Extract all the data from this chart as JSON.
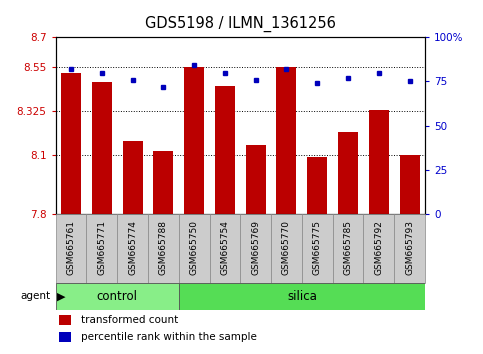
{
  "title": "GDS5198 / ILMN_1361256",
  "samples": [
    "GSM665761",
    "GSM665771",
    "GSM665774",
    "GSM665788",
    "GSM665750",
    "GSM665754",
    "GSM665769",
    "GSM665770",
    "GSM665775",
    "GSM665785",
    "GSM665792",
    "GSM665793"
  ],
  "transformed_count": [
    8.52,
    8.47,
    8.17,
    8.12,
    8.55,
    8.45,
    8.15,
    8.55,
    8.09,
    8.22,
    8.33,
    8.1
  ],
  "percentile_rank": [
    82,
    80,
    76,
    72,
    84,
    80,
    76,
    82,
    74,
    77,
    80,
    75
  ],
  "ylim_left": [
    7.8,
    8.7
  ],
  "ylim_right": [
    0,
    100
  ],
  "yticks_left": [
    7.8,
    8.1,
    8.325,
    8.55,
    8.7
  ],
  "ytick_labels_left": [
    "7.8",
    "8.1",
    "8.325",
    "8.55",
    "8.7"
  ],
  "yticks_right": [
    0,
    25,
    50,
    75,
    100
  ],
  "ytick_labels_right": [
    "0",
    "25",
    "50",
    "75",
    "100%"
  ],
  "grid_lines": [
    8.1,
    8.325,
    8.55
  ],
  "bar_color": "#bb0000",
  "dot_color": "#0000bb",
  "control_color": "#88ee88",
  "silica_color": "#55dd55",
  "label_bg_color": "#cccccc",
  "bar_bottom": 7.8,
  "left_label_color": "#cc0000",
  "right_label_color": "#0000cc",
  "n_control": 4,
  "n_silica": 8
}
